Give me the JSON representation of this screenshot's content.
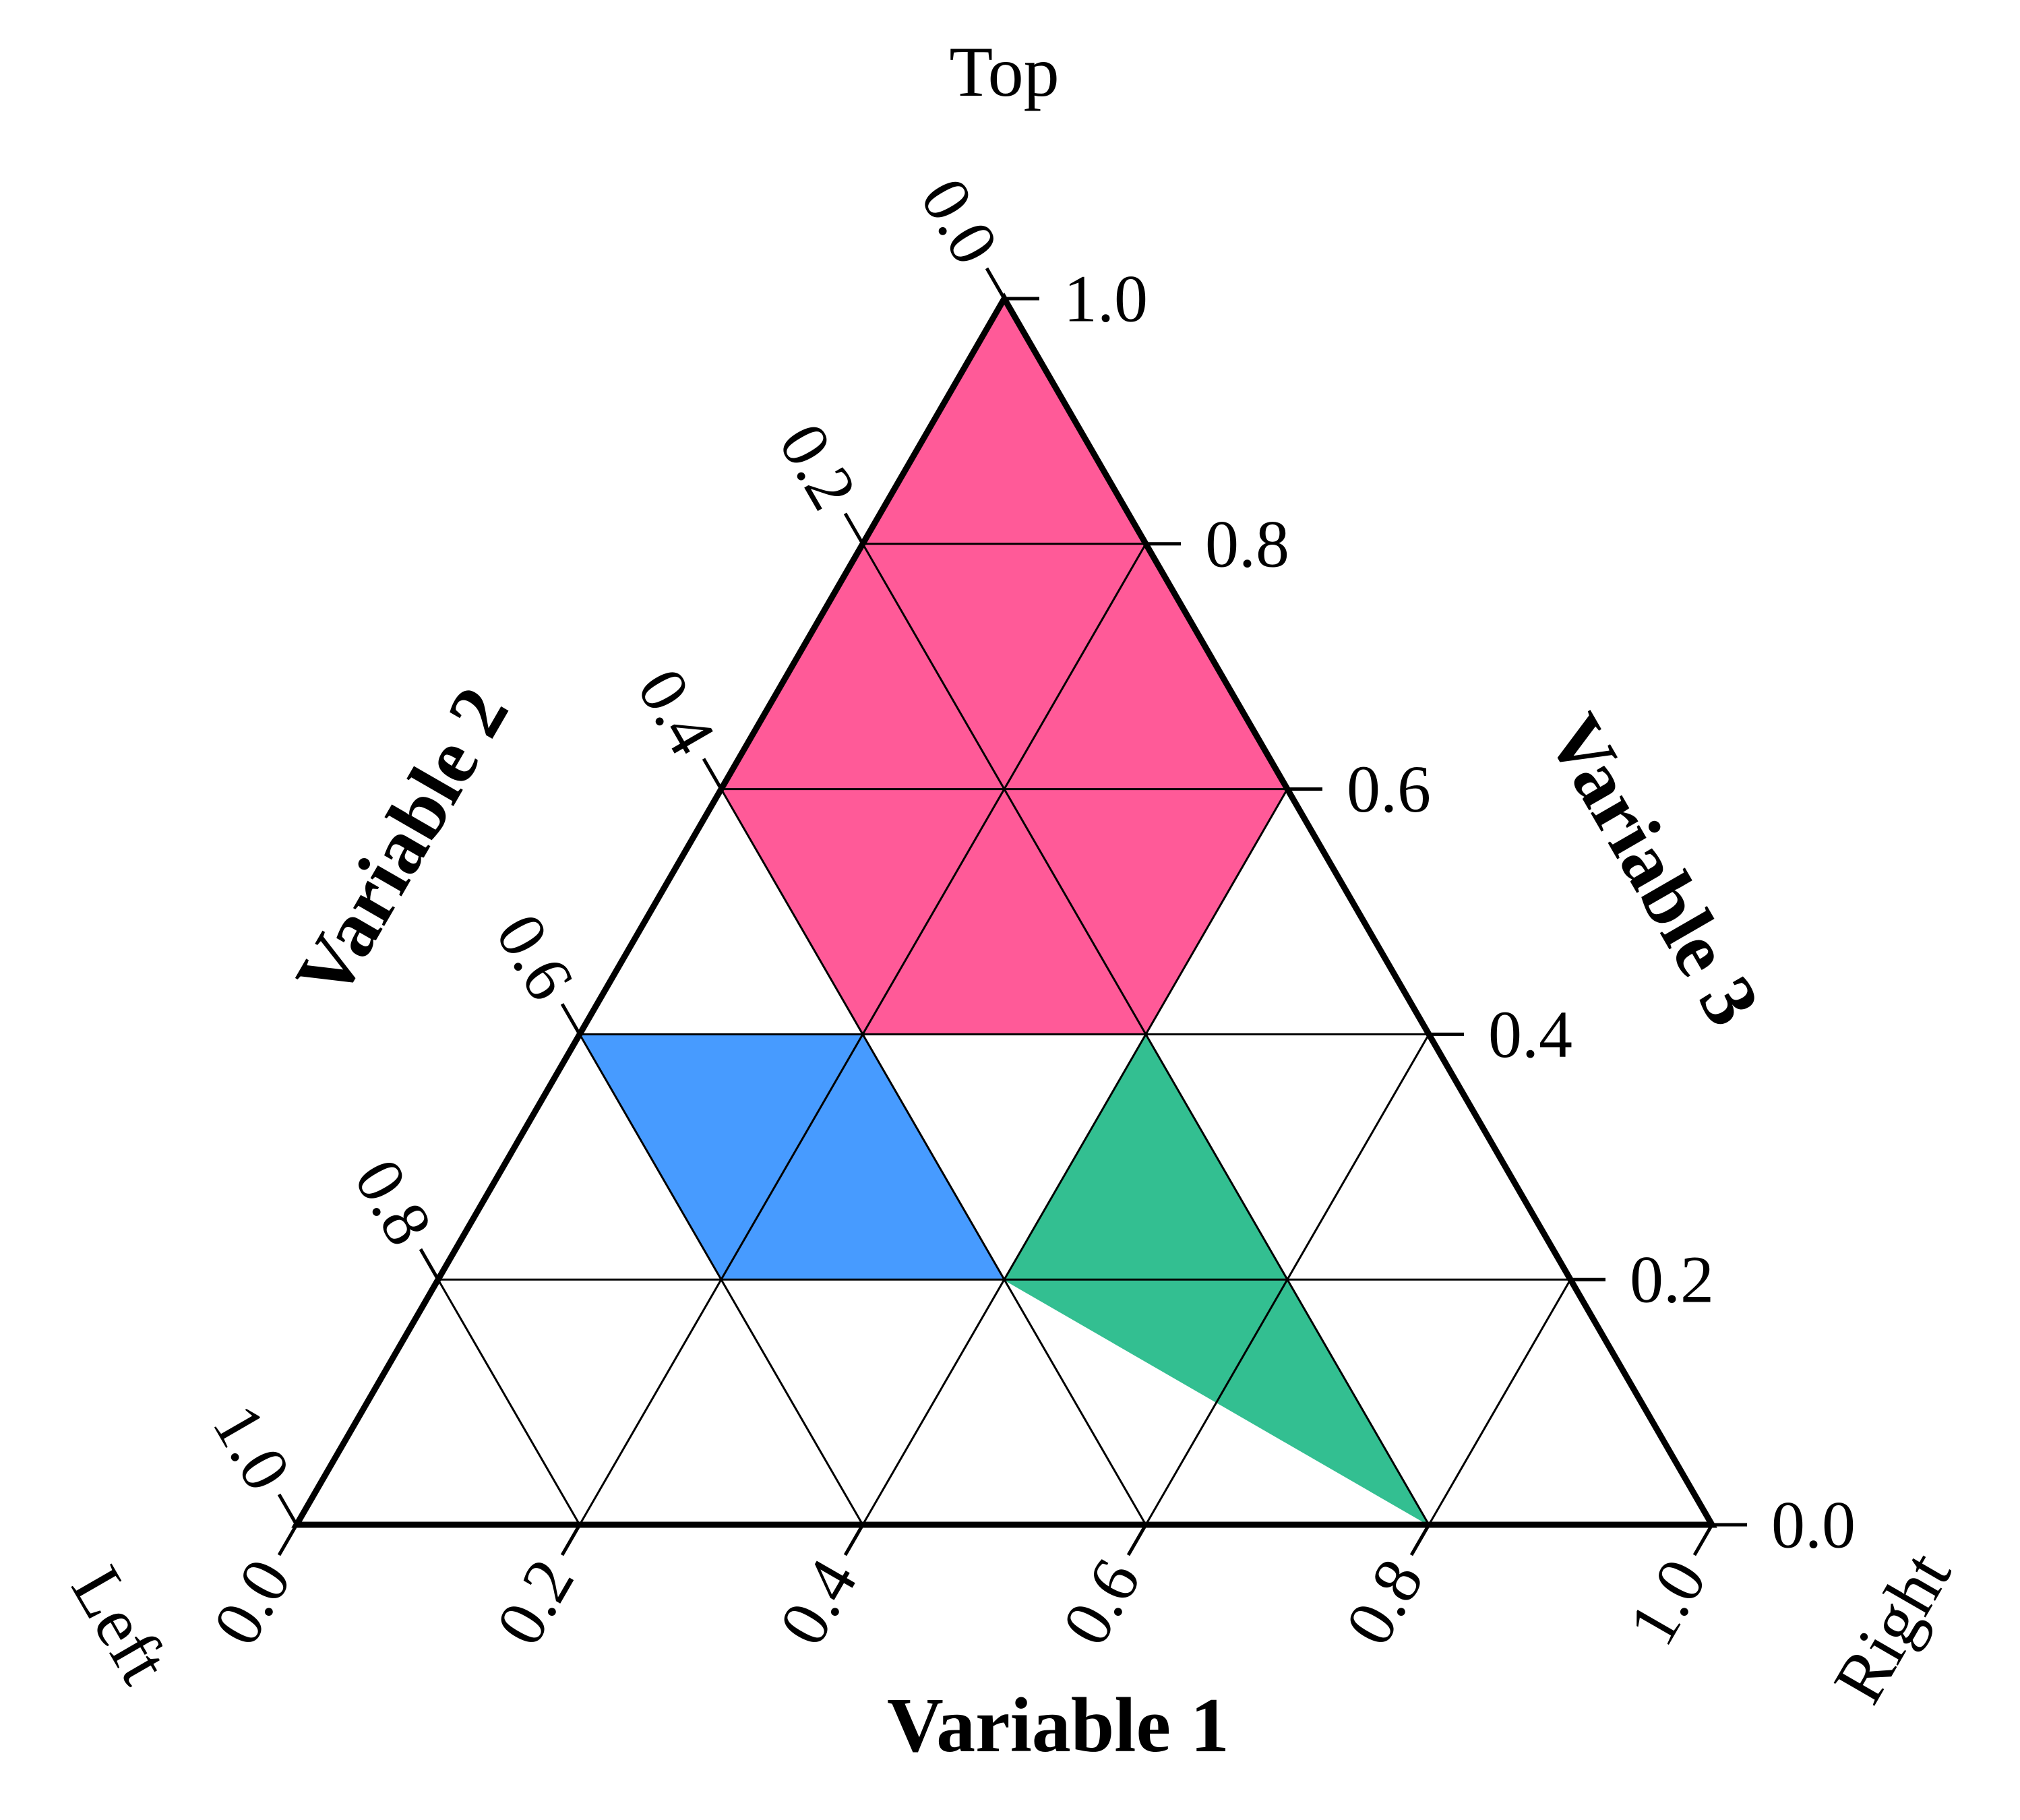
{
  "chart_data": {
    "type": "ternary",
    "components": [
      "Variable 1",
      "Variable 2",
      "Variable 3"
    ],
    "axes": {
      "bottom": {
        "title": "Variable 1",
        "ticks": [
          "0.0",
          "0.2",
          "0.4",
          "0.6",
          "0.8",
          "1.0"
        ],
        "values": [
          0,
          0.2,
          0.4,
          0.6,
          0.8,
          1.0
        ]
      },
      "left": {
        "title": "Variable 2",
        "ticks": [
          "0.0",
          "0.2",
          "0.4",
          "0.6",
          "0.8",
          "1.0"
        ],
        "values": [
          0,
          0.2,
          0.4,
          0.6,
          0.8,
          1.0
        ]
      },
      "right": {
        "title": "Variable 3",
        "ticks": [
          "0.0",
          "0.2",
          "0.4",
          "0.6",
          "0.8",
          "1.0"
        ],
        "values": [
          0,
          0.2,
          0.4,
          0.6,
          0.8,
          1.0
        ]
      }
    },
    "corner_labels": {
      "top": "Top",
      "left": "Left",
      "right": "Right"
    },
    "grid_step": 0.2,
    "grid": true,
    "regions": [
      {
        "id": "pink",
        "color": "#FF5A98",
        "vertices": [
          [
            0.0,
            0.0,
            1.0
          ],
          [
            0.0,
            0.4,
            0.6
          ],
          [
            0.2,
            0.4,
            0.4
          ],
          [
            0.4,
            0.2,
            0.4
          ],
          [
            0.4,
            0.0,
            0.6
          ]
        ]
      },
      {
        "id": "blue",
        "color": "#479BFF",
        "vertices": [
          [
            0.0,
            0.6,
            0.4
          ],
          [
            0.2,
            0.6,
            0.2
          ],
          [
            0.4,
            0.4,
            0.2
          ],
          [
            0.2,
            0.4,
            0.4
          ]
        ]
      },
      {
        "id": "green",
        "color": "#33BF91",
        "vertices": [
          [
            0.4,
            0.4,
            0.2
          ],
          [
            0.8,
            0.2,
            0.0
          ],
          [
            0.4,
            0.2,
            0.4
          ]
        ]
      }
    ]
  }
}
